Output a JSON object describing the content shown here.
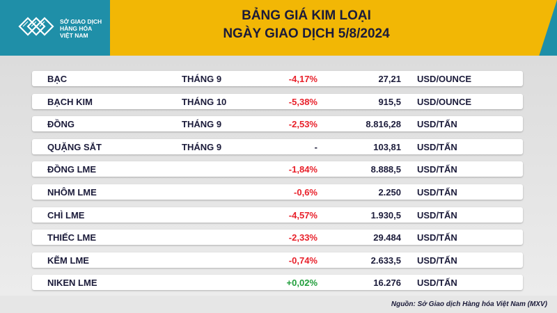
{
  "header": {
    "logo_lines": [
      "SỞ GIAO DỊCH",
      "HÀNG HÓA",
      "VIỆT NAM"
    ],
    "title_line1": "BẢNG GIÁ KIM LOẠI",
    "title_line2": "NGÀY GIAO DỊCH 5/8/2024",
    "colors": {
      "accent": "#f2b705",
      "brand": "#1f8fa8"
    }
  },
  "rows": [
    {
      "name": "BẠC",
      "month": "THÁNG 9",
      "change": "-4,17%",
      "price": "27,21",
      "unit": "USD/OUNCE",
      "trend": "neg"
    },
    {
      "name": "BẠCH KIM",
      "month": "THÁNG 10",
      "change": "-5,38%",
      "price": "915,5",
      "unit": "USD/OUNCE",
      "trend": "neg"
    },
    {
      "name": "ĐỒNG",
      "month": "THÁNG 9",
      "change": "-2,53%",
      "price": "8.816,28",
      "unit": "USD/TẤN",
      "trend": "neg"
    },
    {
      "name": "QUẶNG SẮT",
      "month": "THÁNG 9",
      "change": "-",
      "price": "103,81",
      "unit": "USD/TẤN",
      "trend": "neutral"
    },
    {
      "name": "ĐỒNG LME",
      "month": "",
      "change": "-1,84%",
      "price": "8.888,5",
      "unit": "USD/TẤN",
      "trend": "neg"
    },
    {
      "name": "NHÔM LME",
      "month": "",
      "change": "-0,6%",
      "price": "2.250",
      "unit": "USD/TẤN",
      "trend": "neg"
    },
    {
      "name": "CHÌ LME",
      "month": "",
      "change": "-4,57%",
      "price": "1.930,5",
      "unit": "USD/TẤN",
      "trend": "neg"
    },
    {
      "name": "THIẾC LME",
      "month": "",
      "change": "-2,33%",
      "price": "29.484",
      "unit": "USD/TẤN",
      "trend": "neg"
    },
    {
      "name": "KẼM LME",
      "month": "",
      "change": "-0,74%",
      "price": "2.633,5",
      "unit": "USD/TẤN",
      "trend": "neg"
    },
    {
      "name": "NIKEN LME",
      "month": "",
      "change": "+0,02%",
      "price": "16.276",
      "unit": "USD/TẤN",
      "trend": "pos"
    }
  ],
  "footer": {
    "source": "Nguồn: Sở Giao dịch Hàng hóa Việt Nam (MXV)"
  }
}
